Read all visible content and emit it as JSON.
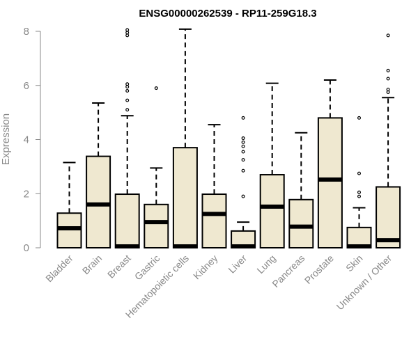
{
  "chart_data": {
    "type": "boxplot",
    "title": "ENSG00000262539 - RP11-259G18.3",
    "xlabel": "",
    "ylabel": "Expression",
    "ylim": [
      0,
      8
    ],
    "yticks": [
      0,
      2,
      4,
      6,
      8
    ],
    "box_color": "#efe8d0",
    "categories": [
      "Bladder",
      "Brain",
      "Breast",
      "Gastric",
      "Hematopoietic cells",
      "Kidney",
      "Liver",
      "Lung",
      "Pancreas",
      "Prostate",
      "Skin",
      "Unknown / Other"
    ],
    "boxes": [
      {
        "name": "Bladder",
        "min": 0,
        "q1": 0,
        "median": 0.72,
        "q3": 1.28,
        "max": 3.15,
        "outliers": []
      },
      {
        "name": "Brain",
        "min": 0,
        "q1": 0,
        "median": 1.6,
        "q3": 3.38,
        "max": 5.35,
        "outliers": []
      },
      {
        "name": "Breast",
        "min": 0,
        "q1": 0,
        "median": 0,
        "q3": 1.98,
        "max": 4.88,
        "outliers": [
          5.1,
          5.45,
          5.8,
          5.95,
          6.05,
          7.85,
          7.95,
          8.05
        ]
      },
      {
        "name": "Gastric",
        "min": 0,
        "q1": 0,
        "median": 0.95,
        "q3": 1.6,
        "max": 2.95,
        "outliers": [
          5.9
        ]
      },
      {
        "name": "Hematopoietic cells",
        "min": 0,
        "q1": 0,
        "median": 0,
        "q3": 3.7,
        "max": 8.08,
        "outliers": []
      },
      {
        "name": "Kidney",
        "min": 0,
        "q1": 0,
        "median": 1.25,
        "q3": 1.98,
        "max": 4.55,
        "outliers": []
      },
      {
        "name": "Liver",
        "min": 0,
        "q1": 0,
        "median": 0,
        "q3": 0.62,
        "max": 0.95,
        "outliers": [
          1.9,
          2.85,
          3.25,
          3.55,
          3.75,
          3.9,
          4.05,
          4.8
        ]
      },
      {
        "name": "Lung",
        "min": 0,
        "q1": 0,
        "median": 1.52,
        "q3": 2.7,
        "max": 6.08,
        "outliers": []
      },
      {
        "name": "Pancreas",
        "min": 0,
        "q1": 0,
        "median": 0.78,
        "q3": 1.78,
        "max": 4.25,
        "outliers": []
      },
      {
        "name": "Prostate",
        "min": 0,
        "q1": 0,
        "median": 2.52,
        "q3": 4.8,
        "max": 6.2,
        "outliers": []
      },
      {
        "name": "Skin",
        "min": 0,
        "q1": 0,
        "median": 0,
        "q3": 0.75,
        "max": 1.48,
        "outliers": [
          1.9,
          2.05,
          2.75,
          4.8
        ]
      },
      {
        "name": "Unknown / Other",
        "min": 0,
        "q1": 0,
        "median": 0.28,
        "q3": 2.25,
        "max": 5.55,
        "outliers": [
          5.75,
          5.85,
          6.25,
          6.55,
          7.85
        ]
      }
    ]
  }
}
